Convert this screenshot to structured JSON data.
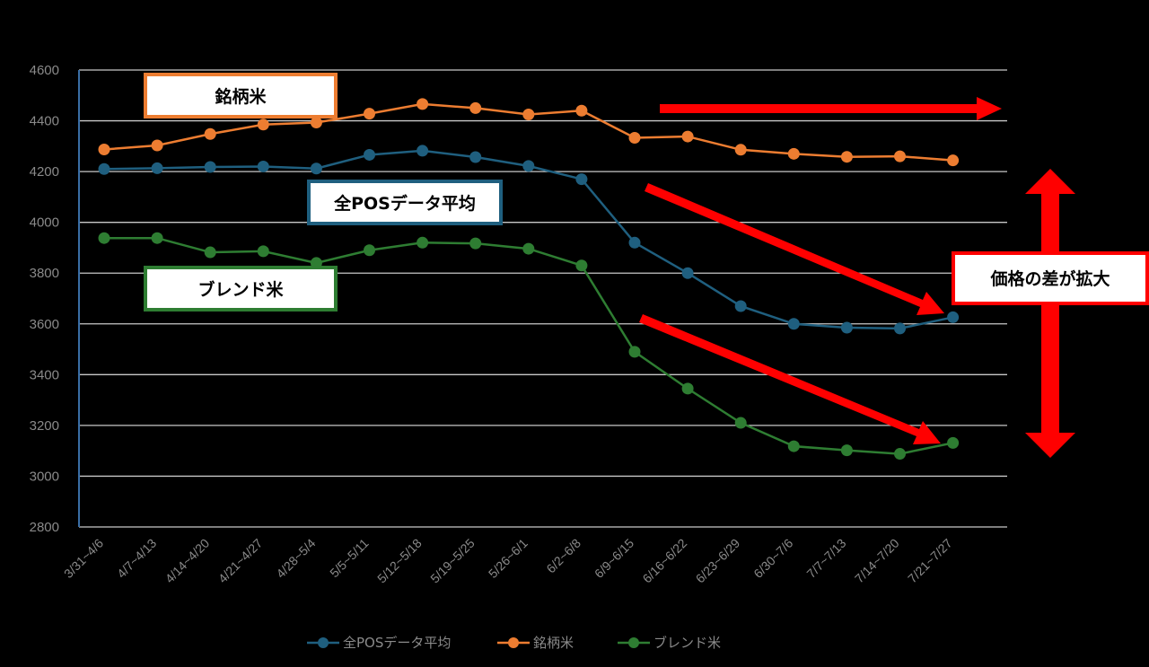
{
  "chart_data": {
    "type": "line",
    "categories": [
      "3/31~4/6",
      "4/7~4/13",
      "4/14~4/20",
      "4/21~4/27",
      "4/28~5/4",
      "5/5~5/11",
      "5/12~5/18",
      "5/19~5/25",
      "5/26~6/1",
      "6/2~6/8",
      "6/9~6/15",
      "6/16~6/22",
      "6/23~6/29",
      "6/30~7/6",
      "7/7~7/13",
      "7/14~7/20",
      "7/21~7/27"
    ],
    "ylim": [
      2800,
      4600
    ],
    "yticks": [
      2800,
      3000,
      3200,
      3400,
      3600,
      3800,
      4000,
      4200,
      4400,
      4600
    ],
    "grid": true,
    "legend_position": "bottom",
    "series": [
      {
        "name": "全POSデータ平均",
        "color": "#1f5f7f",
        "values": [
          4210,
          4213,
          4218,
          4220,
          4212,
          4266,
          4282,
          4257,
          4222,
          4170,
          3920,
          3800,
          3670,
          3600,
          3585,
          3582,
          3626
        ]
      },
      {
        "name": "銘柄米",
        "color": "#ed7d31",
        "values": [
          4287,
          4303,
          4348,
          4385,
          4393,
          4428,
          4466,
          4450,
          4425,
          4440,
          4333,
          4338,
          4286,
          4270,
          4258,
          4260,
          4244
        ]
      },
      {
        "name": "ブレンド米",
        "color": "#2e7d32",
        "values": [
          3938,
          3938,
          3882,
          3886,
          3840,
          3890,
          3920,
          3917,
          3896,
          3830,
          3490,
          3345,
          3210,
          3118,
          3102,
          3088,
          3131
        ]
      }
    ],
    "annotations": {
      "brand_label": "銘柄米",
      "avg_label": "全POSデータ平均",
      "blend_label": "ブレンド米",
      "gap_label": "価格の差が拡大"
    }
  },
  "colors": {
    "annotation_arrow": "#ff0000",
    "gridline": "#c8c8c8",
    "axis": "#3a6ea5"
  }
}
